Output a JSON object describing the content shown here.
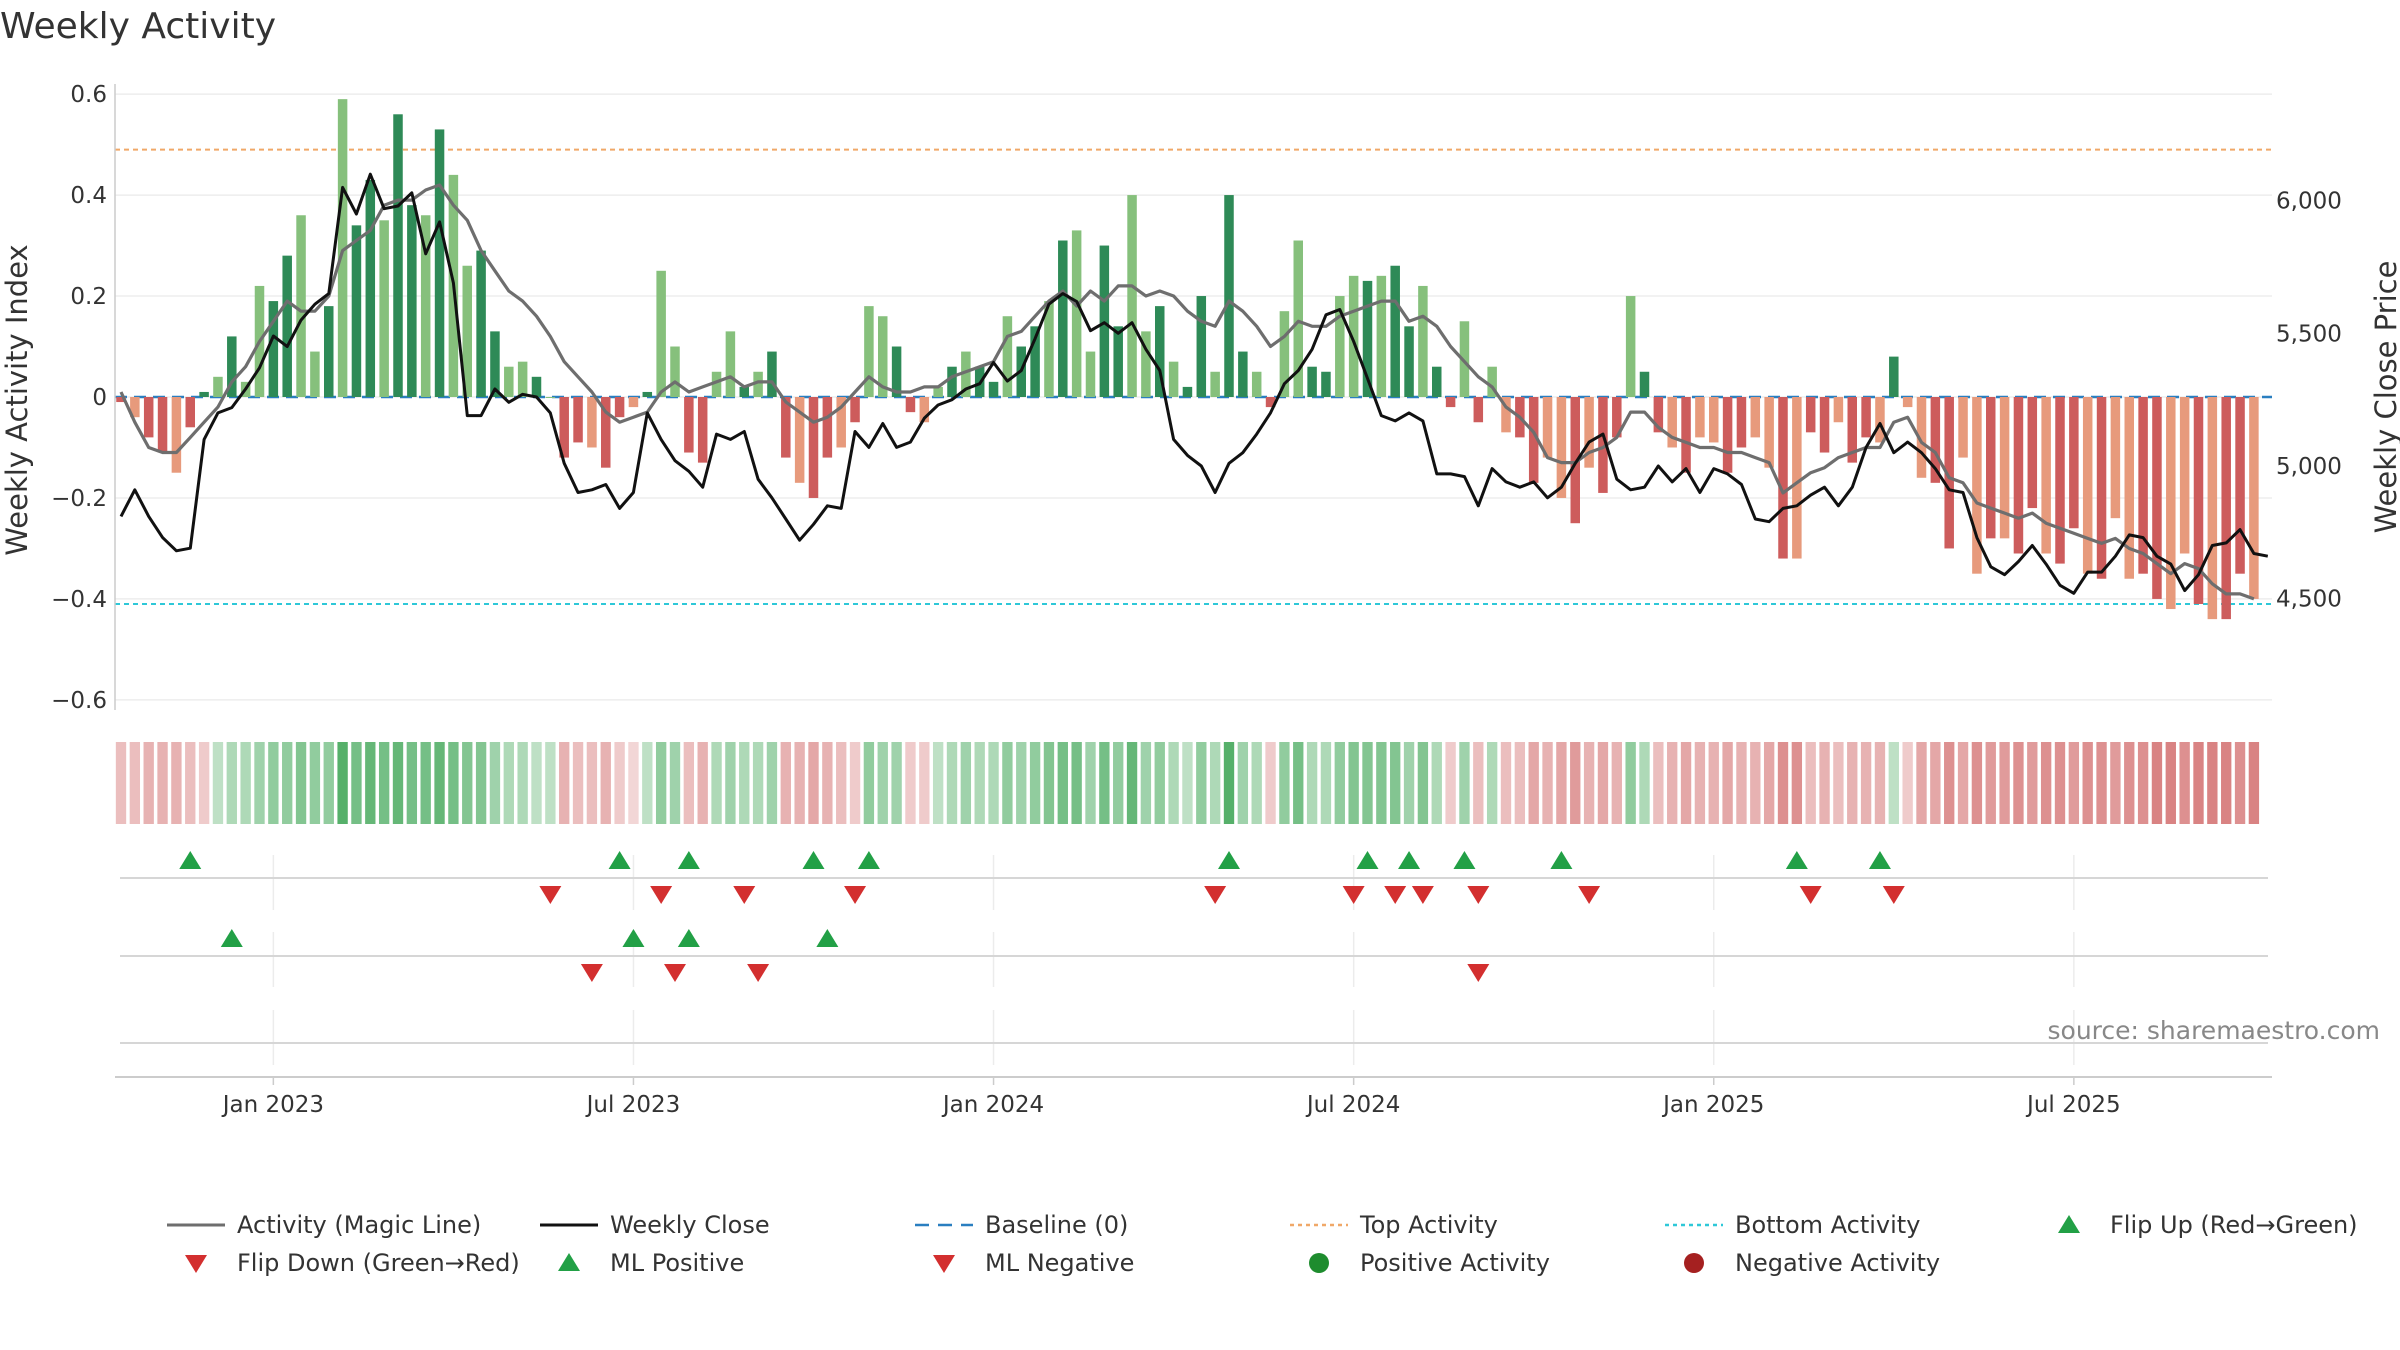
{
  "chart_data": {
    "type": "bar+line",
    "title": "Weekly Activity",
    "ylabel_left": "Weekly Activity Index",
    "ylabel_right": "Weekly Close Price",
    "ylim_left": [
      -0.62,
      0.62
    ],
    "ylim_right": [
      4080,
      6440
    ],
    "yticks_left": [
      {
        "v": 0.6,
        "label": "0.6"
      },
      {
        "v": 0.4,
        "label": "0.4"
      },
      {
        "v": 0.2,
        "label": "0.2"
      },
      {
        "v": 0,
        "label": "0"
      },
      {
        "v": -0.2,
        "label": "−0.2"
      },
      {
        "v": -0.4,
        "label": "−0.4"
      },
      {
        "v": -0.6,
        "label": "−0.6"
      }
    ],
    "yticks_right": [
      {
        "v": 6000,
        "label": "6,000"
      },
      {
        "v": 5500,
        "label": "5,500"
      },
      {
        "v": 5000,
        "label": "5,000"
      },
      {
        "v": 4500,
        "label": "4,500"
      }
    ],
    "xticks": [
      {
        "week": 11,
        "label": "Jan 2023"
      },
      {
        "week": 37,
        "label": "Jul 2023"
      },
      {
        "week": 63,
        "label": "Jan 2024"
      },
      {
        "week": 89,
        "label": "Jul 2024"
      },
      {
        "week": 115,
        "label": "Jan 2025"
      },
      {
        "week": 141,
        "label": "Jul 2025"
      }
    ],
    "n_weeks": 155,
    "top_activity": 0.49,
    "bottom_activity": -0.41,
    "baseline": 0,
    "activity": [
      -0.01,
      -0.04,
      -0.08,
      -0.11,
      -0.15,
      -0.06,
      0.01,
      0.04,
      0.12,
      0.03,
      0.22,
      0.19,
      0.28,
      0.36,
      0.09,
      0.18,
      0.59,
      0.34,
      0.43,
      0.35,
      0.56,
      0.38,
      0.36,
      0.53,
      0.44,
      0.26,
      0.29,
      0.13,
      0.06,
      0.07,
      0.04,
      0.0,
      -0.12,
      -0.09,
      -0.1,
      -0.14,
      -0.04,
      -0.02,
      0.01,
      0.25,
      0.1,
      -0.11,
      -0.13,
      0.05,
      0.13,
      0.02,
      0.05,
      0.09,
      -0.12,
      -0.17,
      -0.2,
      -0.12,
      -0.1,
      -0.05,
      0.18,
      0.16,
      0.1,
      -0.03,
      -0.05,
      0.02,
      0.06,
      0.09,
      0.06,
      0.03,
      0.16,
      0.1,
      0.14,
      0.19,
      0.31,
      0.33,
      0.09,
      0.3,
      0.14,
      0.4,
      0.13,
      0.18,
      0.07,
      0.02,
      0.2,
      0.05,
      0.4,
      0.09,
      0.05,
      -0.02,
      0.17,
      0.31,
      0.06,
      0.05,
      0.2,
      0.24,
      0.23,
      0.24,
      0.26,
      0.14,
      0.22,
      0.06,
      -0.02,
      0.15,
      -0.05,
      0.06,
      -0.07,
      -0.08,
      -0.17,
      -0.12,
      -0.2,
      -0.25,
      -0.14,
      -0.19,
      -0.08,
      0.2,
      0.05,
      -0.07,
      -0.1,
      -0.15,
      -0.08,
      -0.09,
      -0.15,
      -0.1,
      -0.08,
      -0.14,
      -0.32,
      -0.32,
      -0.07,
      -0.11,
      -0.05,
      -0.13,
      -0.08,
      -0.09,
      0.08,
      -0.02,
      -0.16,
      -0.17,
      -0.3,
      -0.12,
      -0.35,
      -0.28,
      -0.28,
      -0.31,
      -0.22,
      -0.31,
      -0.33,
      -0.26,
      -0.35,
      -0.36,
      -0.24,
      -0.36,
      -0.35,
      -0.4,
      -0.42,
      -0.31,
      -0.41,
      -0.44,
      -0.44,
      -0.35,
      -0.4
    ],
    "magic_line": [
      0.01,
      -0.05,
      -0.1,
      -0.11,
      -0.11,
      -0.08,
      -0.05,
      -0.02,
      0.03,
      0.06,
      0.11,
      0.15,
      0.19,
      0.17,
      0.17,
      0.2,
      0.29,
      0.31,
      0.33,
      0.38,
      0.39,
      0.39,
      0.41,
      0.42,
      0.38,
      0.35,
      0.29,
      0.25,
      0.21,
      0.19,
      0.16,
      0.12,
      0.07,
      0.04,
      0.01,
      -0.03,
      -0.05,
      -0.04,
      -0.03,
      0.01,
      0.03,
      0.01,
      0.02,
      0.03,
      0.04,
      0.02,
      0.03,
      0.03,
      -0.01,
      -0.03,
      -0.05,
      -0.04,
      -0.02,
      0.01,
      0.04,
      0.02,
      0.01,
      0.01,
      0.02,
      0.02,
      0.04,
      0.05,
      0.06,
      0.07,
      0.12,
      0.13,
      0.16,
      0.19,
      0.21,
      0.18,
      0.21,
      0.19,
      0.22,
      0.22,
      0.2,
      0.21,
      0.2,
      0.17,
      0.15,
      0.14,
      0.19,
      0.17,
      0.14,
      0.1,
      0.12,
      0.15,
      0.14,
      0.14,
      0.16,
      0.17,
      0.18,
      0.19,
      0.19,
      0.15,
      0.16,
      0.14,
      0.1,
      0.07,
      0.04,
      0.02,
      -0.02,
      -0.04,
      -0.07,
      -0.12,
      -0.13,
      -0.13,
      -0.11,
      -0.1,
      -0.08,
      -0.03,
      -0.03,
      -0.06,
      -0.08,
      -0.09,
      -0.1,
      -0.1,
      -0.11,
      -0.11,
      -0.12,
      -0.13,
      -0.19,
      -0.17,
      -0.15,
      -0.14,
      -0.12,
      -0.11,
      -0.1,
      -0.1,
      -0.05,
      -0.04,
      -0.09,
      -0.11,
      -0.16,
      -0.17,
      -0.21,
      -0.22,
      -0.23,
      -0.24,
      -0.23,
      -0.25,
      -0.26,
      -0.27,
      -0.28,
      -0.29,
      -0.28,
      -0.3,
      -0.31,
      -0.33,
      -0.35,
      -0.33,
      -0.34,
      -0.37,
      -0.39,
      -0.39,
      -0.4
    ],
    "weekly_close": [
      4810,
      4910,
      4810,
      4730,
      4680,
      4690,
      5100,
      5200,
      5220,
      5290,
      5370,
      5490,
      5450,
      5550,
      5610,
      5650,
      6050,
      5950,
      6100,
      5970,
      5980,
      6030,
      5800,
      5920,
      5690,
      5190,
      5190,
      5290,
      5240,
      5270,
      5260,
      5200,
      5010,
      4900,
      4910,
      4930,
      4840,
      4900,
      5200,
      5100,
      5020,
      4980,
      4920,
      5120,
      5100,
      5130,
      4950,
      4880,
      4800,
      4720,
      4780,
      4850,
      4840,
      5130,
      5070,
      5160,
      5070,
      5090,
      5180,
      5230,
      5250,
      5290,
      5310,
      5390,
      5320,
      5360,
      5480,
      5610,
      5650,
      5620,
      5510,
      5540,
      5500,
      5540,
      5440,
      5360,
      5100,
      5040,
      5000,
      4900,
      5010,
      5050,
      5120,
      5200,
      5310,
      5360,
      5440,
      5570,
      5590,
      5470,
      5330,
      5190,
      5170,
      5200,
      5170,
      4970,
      4970,
      4960,
      4850,
      4990,
      4940,
      4920,
      4940,
      4880,
      4920,
      5010,
      5090,
      5120,
      4950,
      4910,
      4920,
      5000,
      4940,
      4990,
      4900,
      4990,
      4970,
      4930,
      4800,
      4790,
      4840,
      4850,
      4890,
      4920,
      4850,
      4920,
      5070,
      5160,
      5050,
      5090,
      5050,
      4990,
      4910,
      4900,
      4730,
      4620,
      4590,
      4640,
      4700,
      4630,
      4550,
      4520,
      4600,
      4600,
      4660,
      4740,
      4730,
      4660,
      4630,
      4530,
      4590,
      4700,
      4710,
      4760,
      4670,
      4660
    ],
    "strip_intensity": [
      -0.3,
      -0.3,
      -0.4,
      -0.4,
      -0.4,
      -0.3,
      -0.2,
      0.2,
      0.3,
      0.3,
      0.4,
      0.5,
      0.5,
      0.6,
      0.5,
      0.5,
      0.9,
      0.7,
      0.8,
      0.7,
      0.8,
      0.7,
      0.7,
      0.8,
      0.7,
      0.6,
      0.6,
      0.4,
      0.3,
      0.3,
      0.2,
      0.2,
      -0.4,
      -0.3,
      -0.3,
      -0.4,
      -0.2,
      -0.1,
      0.2,
      0.5,
      0.4,
      -0.3,
      -0.4,
      0.3,
      0.4,
      0.3,
      0.3,
      0.4,
      -0.4,
      -0.4,
      -0.5,
      -0.4,
      -0.3,
      -0.2,
      0.5,
      0.4,
      0.4,
      -0.2,
      -0.2,
      0.2,
      0.3,
      0.4,
      0.3,
      0.3,
      0.5,
      0.4,
      0.5,
      0.6,
      0.7,
      0.7,
      0.4,
      0.7,
      0.5,
      0.8,
      0.4,
      0.5,
      0.3,
      0.2,
      0.5,
      0.3,
      0.9,
      0.4,
      0.3,
      -0.2,
      0.5,
      0.7,
      0.3,
      0.3,
      0.5,
      0.6,
      0.6,
      0.6,
      0.6,
      0.4,
      0.6,
      0.3,
      -0.2,
      0.4,
      -0.3,
      0.3,
      -0.3,
      -0.3,
      -0.5,
      -0.4,
      -0.5,
      -0.6,
      -0.4,
      -0.5,
      -0.4,
      0.5,
      0.3,
      -0.3,
      -0.4,
      -0.5,
      -0.4,
      -0.4,
      -0.5,
      -0.4,
      -0.4,
      -0.5,
      -0.7,
      -0.7,
      -0.3,
      -0.4,
      -0.3,
      -0.4,
      -0.4,
      -0.4,
      0.2,
      -0.2,
      -0.5,
      -0.5,
      -0.7,
      -0.5,
      -0.7,
      -0.6,
      -0.6,
      -0.7,
      -0.6,
      -0.7,
      -0.7,
      -0.6,
      -0.7,
      -0.7,
      -0.6,
      -0.7,
      -0.7,
      -0.8,
      -0.8,
      -0.7,
      -0.8,
      -0.8,
      -0.8,
      -0.7,
      -0.8
    ],
    "flip_up_weeks": [
      5,
      36,
      41,
      50,
      54,
      80,
      90,
      93,
      97,
      104,
      121,
      127
    ],
    "flip_down_weeks": [
      31,
      39,
      45,
      53,
      79,
      89,
      92,
      94,
      98,
      106,
      122,
      128
    ],
    "ml_positive_weeks": [
      8,
      37,
      41,
      51
    ],
    "ml_negative_weeks": [
      34,
      40,
      46,
      98
    ],
    "colors": {
      "pos_strong": "#2e8a57",
      "pos_light": "#86c07c",
      "neg_strong": "#cd5c5c",
      "neg_light": "#e79a7c",
      "magic_line": "#6e6e6e",
      "weekly_close": "#111111",
      "baseline": "#2a7fc0",
      "top_activity": "#f0a868",
      "bottom_activity": "#2ec8d8",
      "marker_up": "#22a046",
      "marker_down": "#d32f2f",
      "positive_dot": "#1e8c2e",
      "negative_dot": "#a52020"
    }
  },
  "source_label": "source: sharemaestro.com",
  "legend": [
    {
      "label": "Activity (Magic Line)",
      "kind": "solid-line",
      "color": "#6e6e6e"
    },
    {
      "label": "Weekly Close",
      "kind": "solid-line",
      "color": "#111111"
    },
    {
      "label": "Baseline (0)",
      "kind": "dashed-line",
      "color": "#2a7fc0"
    },
    {
      "label": "Top Activity",
      "kind": "dotted-line",
      "color": "#f0a868"
    },
    {
      "label": "Bottom Activity",
      "kind": "dotted-line",
      "color": "#2ec8d8"
    },
    {
      "label": "Flip Up (Red→Green)",
      "kind": "triangle-up",
      "color": "#22a046"
    },
    {
      "label": "Flip Down (Green→Red)",
      "kind": "triangle-down",
      "color": "#d32f2f"
    },
    {
      "label": "ML Positive",
      "kind": "triangle-up",
      "color": "#22a046"
    },
    {
      "label": "ML Negative",
      "kind": "triangle-down",
      "color": "#d32f2f"
    },
    {
      "label": "Positive Activity",
      "kind": "dot",
      "color": "#1e8c2e"
    },
    {
      "label": "Negative Activity",
      "kind": "dot",
      "color": "#a52020"
    }
  ]
}
